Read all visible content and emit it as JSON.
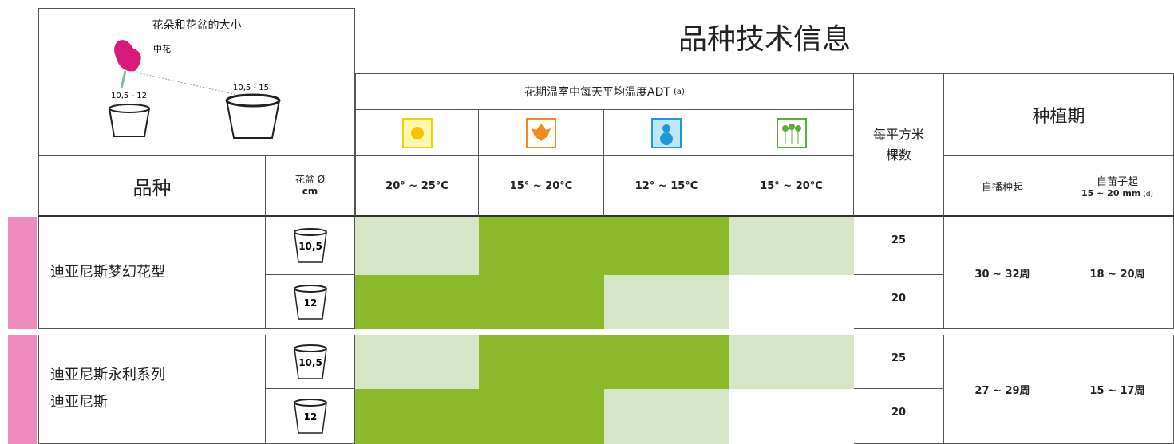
{
  "size_guide": {
    "title": "花朵和花盆的大小",
    "flower": "中花",
    "pot_small": "10,5 - 12",
    "pot_large": "10,5 - 15"
  },
  "title": "品种技术信息",
  "header": {
    "variety": "品种",
    "pot": "花盆 Ø",
    "pot_unit": "cm",
    "adt": "花期温室中每天平均温度ADT",
    "adt_note": "(a)",
    "temps": [
      "20° ~ 25°C",
      "15° ~ 20°C",
      "12° ~ 15°C",
      "15° ~ 20°C"
    ],
    "density": [
      "每平方米",
      "棵数"
    ],
    "period": "种植期",
    "from_sowing": "自播种起",
    "from_seedling": "自苗子起",
    "seedling_size": "15 ~ 20 mm",
    "seedling_note": "(d)"
  },
  "groups": [
    {
      "name": [
        "迪亚尼斯梦幻花型"
      ],
      "color": "#ee8dbd",
      "sowing": "30 ~ 32周",
      "seedling": "18 ~ 20周",
      "rows": [
        {
          "pot": "10,5",
          "cells": [
            "#d6e6c6",
            "#8cb92c",
            "#8cb92c",
            "#d6e6c6"
          ],
          "density": 25
        },
        {
          "pot": "12",
          "cells": [
            "#8cb92c",
            "#8cb92c",
            "#d6e6c6",
            "#ffffff"
          ],
          "density": 20
        }
      ]
    },
    {
      "name": [
        "迪亚尼斯永利系列",
        "迪亚尼斯"
      ],
      "color": "#ee8dbd",
      "sowing": "27 ~ 29周",
      "seedling": "15 ~ 17周",
      "rows": [
        {
          "pot": "10,5",
          "cells": [
            "#d6e6c6",
            "#8cb92c",
            "#8cb92c",
            "#d6e6c6"
          ],
          "density": 25
        },
        {
          "pot": "12",
          "cells": [
            "#8cb92c",
            "#8cb92c",
            "#d6e6c6",
            "#ffffff"
          ],
          "density": 20
        }
      ]
    }
  ]
}
